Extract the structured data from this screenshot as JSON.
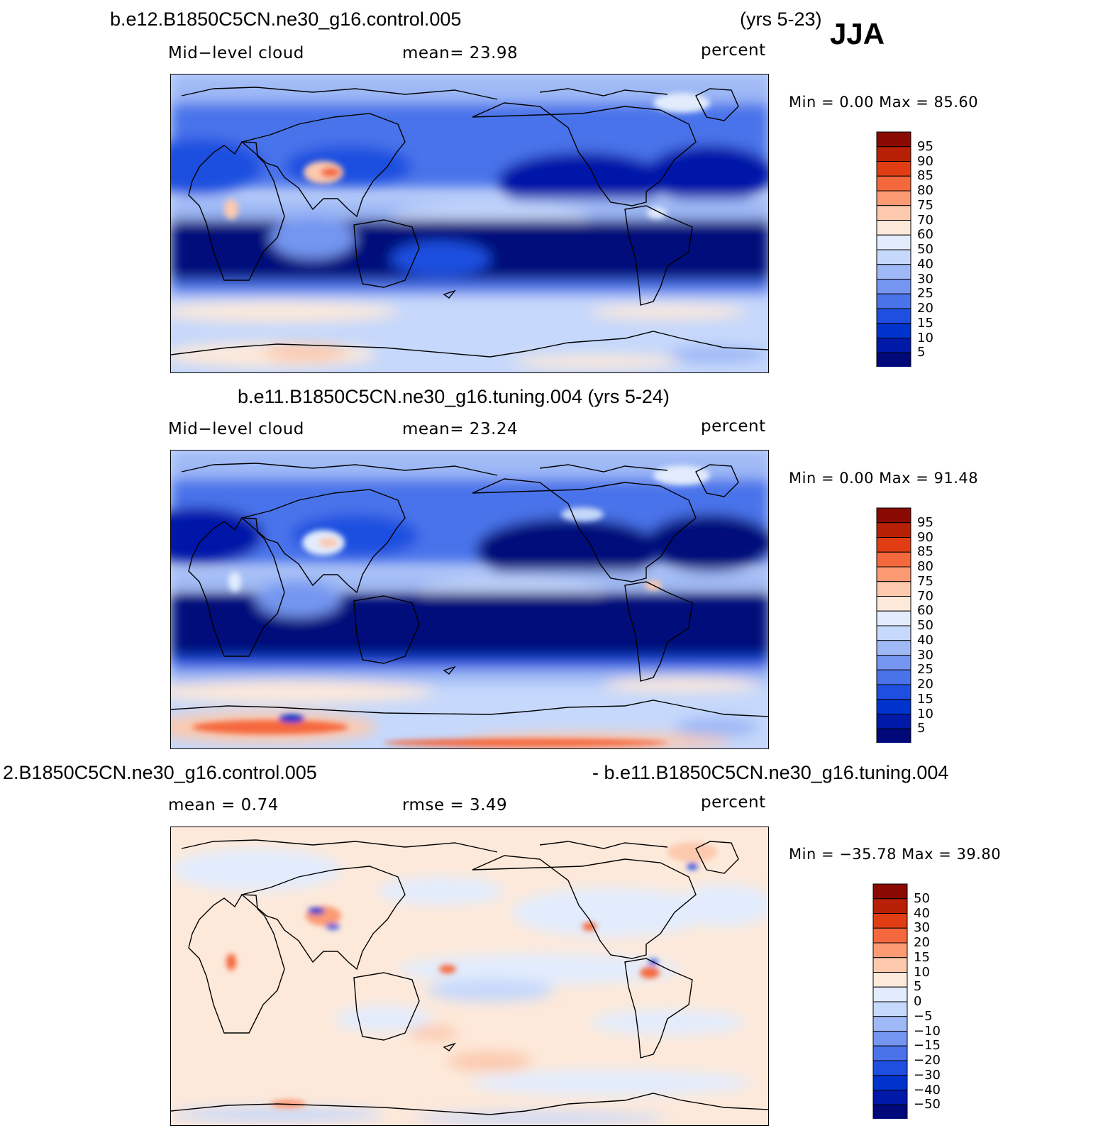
{
  "season": "JJA",
  "panels": [
    {
      "title": "b.e12.B1850C5CN.ne30_g16.control.005",
      "years": "(yrs 5-23)",
      "left_label": "Mid−level cloud",
      "center_label": "mean=   23.98",
      "units": "percent",
      "minmax": "Min  =     0.00  Max  =    85.60",
      "colorbar": {
        "labels": [
          "95",
          "90",
          "85",
          "80",
          "75",
          "70",
          "60",
          "50",
          "40",
          "30",
          "25",
          "20",
          "15",
          "10",
          "5"
        ]
      }
    },
    {
      "title": "b.e11.B1850C5CN.ne30_g16.tuning.004 (yrs 5-24)",
      "years": "",
      "left_label": "Mid−level cloud",
      "center_label": "mean=   23.24",
      "units": "percent",
      "minmax": "Min  =     0.00  Max  =    91.48",
      "colorbar": {
        "labels": [
          "95",
          "90",
          "85",
          "80",
          "75",
          "70",
          "60",
          "50",
          "40",
          "30",
          "25",
          "20",
          "15",
          "10",
          "5"
        ]
      }
    },
    {
      "title": "2.B1850C5CN.ne30_g16.control.005",
      "title_right": "- b.e11.B1850C5CN.ne30_g16.tuning.004",
      "left_label": "mean  =     0.74",
      "center_label": "rmse  =     3.49",
      "units": "percent",
      "minmax": "Min  = −35.78  Max  =    39.80",
      "colorbar": {
        "labels": [
          "50",
          "40",
          "30",
          "20",
          "15",
          "10",
          "5",
          "0",
          "−5",
          "−10",
          "−15",
          "−20",
          "−30",
          "−40",
          "−50"
        ]
      }
    }
  ],
  "colors": {
    "levels": [
      "#00087a",
      "#0019a8",
      "#0033cc",
      "#1f4fe0",
      "#4a73ea",
      "#7496f0",
      "#9fb9f6",
      "#c6d8fb",
      "#e2ecfd",
      "#fde9da",
      "#fcc9ad",
      "#fb9a73",
      "#f5683e",
      "#e03d14",
      "#b82005",
      "#8a0a02"
    ]
  }
}
